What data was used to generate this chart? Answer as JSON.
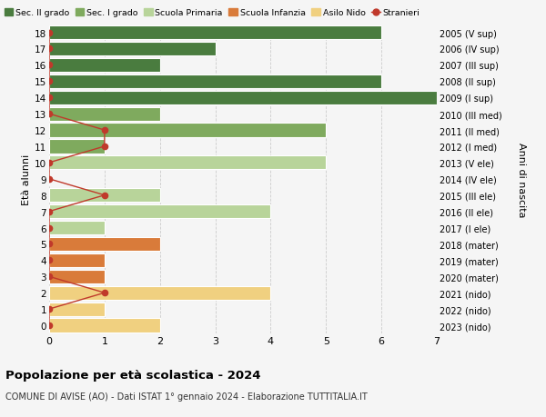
{
  "ages": [
    18,
    17,
    16,
    15,
    14,
    13,
    12,
    11,
    10,
    9,
    8,
    7,
    6,
    5,
    4,
    3,
    2,
    1,
    0
  ],
  "right_labels": [
    "2005 (V sup)",
    "2006 (IV sup)",
    "2007 (III sup)",
    "2008 (II sup)",
    "2009 (I sup)",
    "2010 (III med)",
    "2011 (II med)",
    "2012 (I med)",
    "2013 (V ele)",
    "2014 (IV ele)",
    "2015 (III ele)",
    "2016 (II ele)",
    "2017 (I ele)",
    "2018 (mater)",
    "2019 (mater)",
    "2020 (mater)",
    "2021 (nido)",
    "2022 (nido)",
    "2023 (nido)"
  ],
  "bar_values": [
    6,
    3,
    2,
    6,
    7,
    2,
    5,
    1,
    5,
    0,
    2,
    4,
    1,
    2,
    1,
    1,
    4,
    1,
    2
  ],
  "bar_colors": [
    "#4a7c3f",
    "#4a7c3f",
    "#4a7c3f",
    "#4a7c3f",
    "#4a7c3f",
    "#7faa5e",
    "#7faa5e",
    "#7faa5e",
    "#b8d49a",
    "#b8d49a",
    "#b8d49a",
    "#b8d49a",
    "#b8d49a",
    "#d97b3a",
    "#d97b3a",
    "#d97b3a",
    "#f0d080",
    "#f0d080",
    "#f0d080"
  ],
  "stranieri_x": [
    0,
    0,
    0,
    0,
    0,
    0,
    1,
    1,
    0,
    0,
    1,
    0,
    0,
    0,
    0,
    0,
    1,
    0,
    0
  ],
  "color_sec2": "#4a7c3f",
  "color_sec1": "#7faa5e",
  "color_prim": "#b8d49a",
  "color_inf": "#d97b3a",
  "color_nido": "#f0d080",
  "color_stranieri": "#c0392b",
  "background_color": "#f5f5f5",
  "grid_color": "#cccccc",
  "title": "Popolazione per età scolastica - 2024",
  "subtitle": "COMUNE DI AVISE (AO) - Dati ISTAT 1° gennaio 2024 - Elaborazione TUTTITALIA.IT",
  "xlabel_right": "Anni di nascita",
  "xlabel_left": "Età alunni",
  "xlim": [
    0,
    7
  ],
  "ylim": [
    -0.5,
    18.5
  ],
  "legend_labels": [
    "Sec. II grado",
    "Sec. I grado",
    "Scuola Primaria",
    "Scuola Infanzia",
    "Asilo Nido",
    "Stranieri"
  ]
}
